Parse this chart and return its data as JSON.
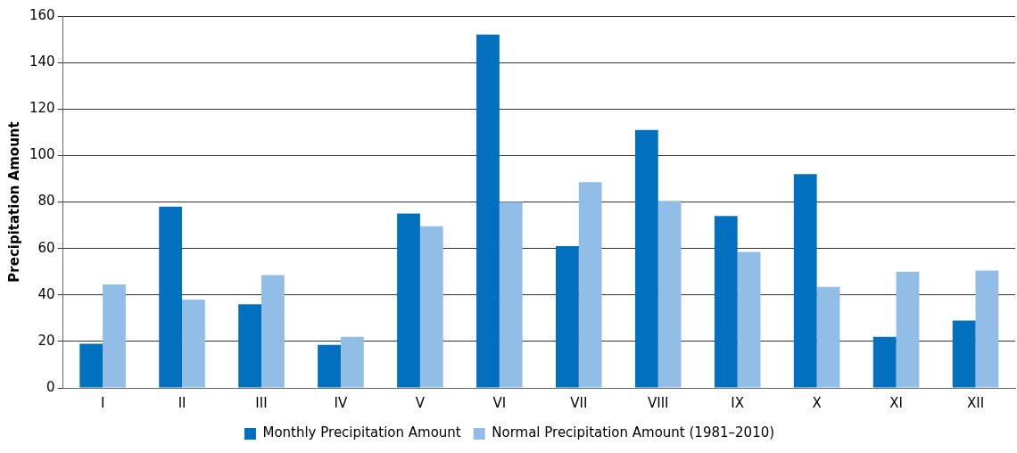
{
  "chart_data": {
    "type": "bar",
    "ylabel": "Precipitation Amount",
    "categories": [
      "I",
      "II",
      "III",
      "IV",
      "V",
      "VI",
      "VII",
      "VIII",
      "IX",
      "X",
      "XI",
      "XII"
    ],
    "series": [
      {
        "name": "Monthly Precipitation Amount",
        "color": "#0070bf",
        "values": [
          19,
          78,
          36,
          18.5,
          75,
          152,
          61,
          111,
          74,
          92,
          22,
          29
        ]
      },
      {
        "name": "Normal Precipitation Amount (1981–2010)",
        "color": "#92bde6",
        "values": [
          44.5,
          38,
          48.5,
          22,
          69.5,
          80,
          88.5,
          80.5,
          58.5,
          43.5,
          50,
          50.5
        ]
      }
    ],
    "ylim": [
      0,
      160
    ],
    "yticks": [
      0,
      20,
      40,
      60,
      80,
      100,
      120,
      140,
      160
    ],
    "grid": "y",
    "legend": "bottom"
  }
}
